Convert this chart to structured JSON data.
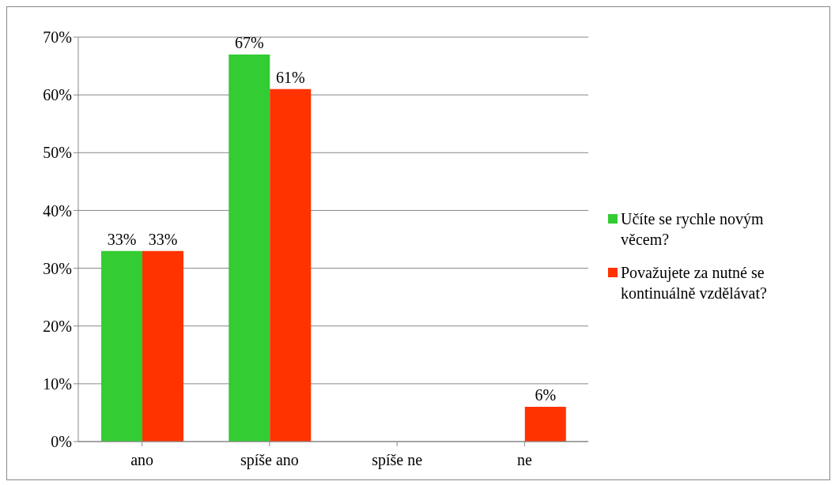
{
  "chart_data": {
    "type": "bar",
    "categories": [
      "ano",
      "spíše ano",
      "spíše ne",
      "ne"
    ],
    "series": [
      {
        "name": "Učíte se rychle novým věcem?",
        "color": "#33cc33",
        "values": [
          33,
          67,
          null,
          null
        ],
        "value_labels": [
          "33%",
          "67%",
          null,
          null
        ]
      },
      {
        "name": "Považujete za nutné se kontinuálně vzdělávat?",
        "color": "#ff3300",
        "values": [
          33,
          61,
          null,
          6
        ],
        "value_labels": [
          "33%",
          "61%",
          null,
          "6%"
        ]
      }
    ],
    "ylim": [
      0,
      70
    ],
    "yticks": [
      {
        "value": 0,
        "label": "0%"
      },
      {
        "value": 10,
        "label": "10%"
      },
      {
        "value": 20,
        "label": "20%"
      },
      {
        "value": 30,
        "label": "30%"
      },
      {
        "value": 40,
        "label": "40%"
      },
      {
        "value": 50,
        "label": "50%"
      },
      {
        "value": 60,
        "label": "60%"
      },
      {
        "value": 70,
        "label": "70%"
      }
    ],
    "grid": "y",
    "legend": "right"
  }
}
